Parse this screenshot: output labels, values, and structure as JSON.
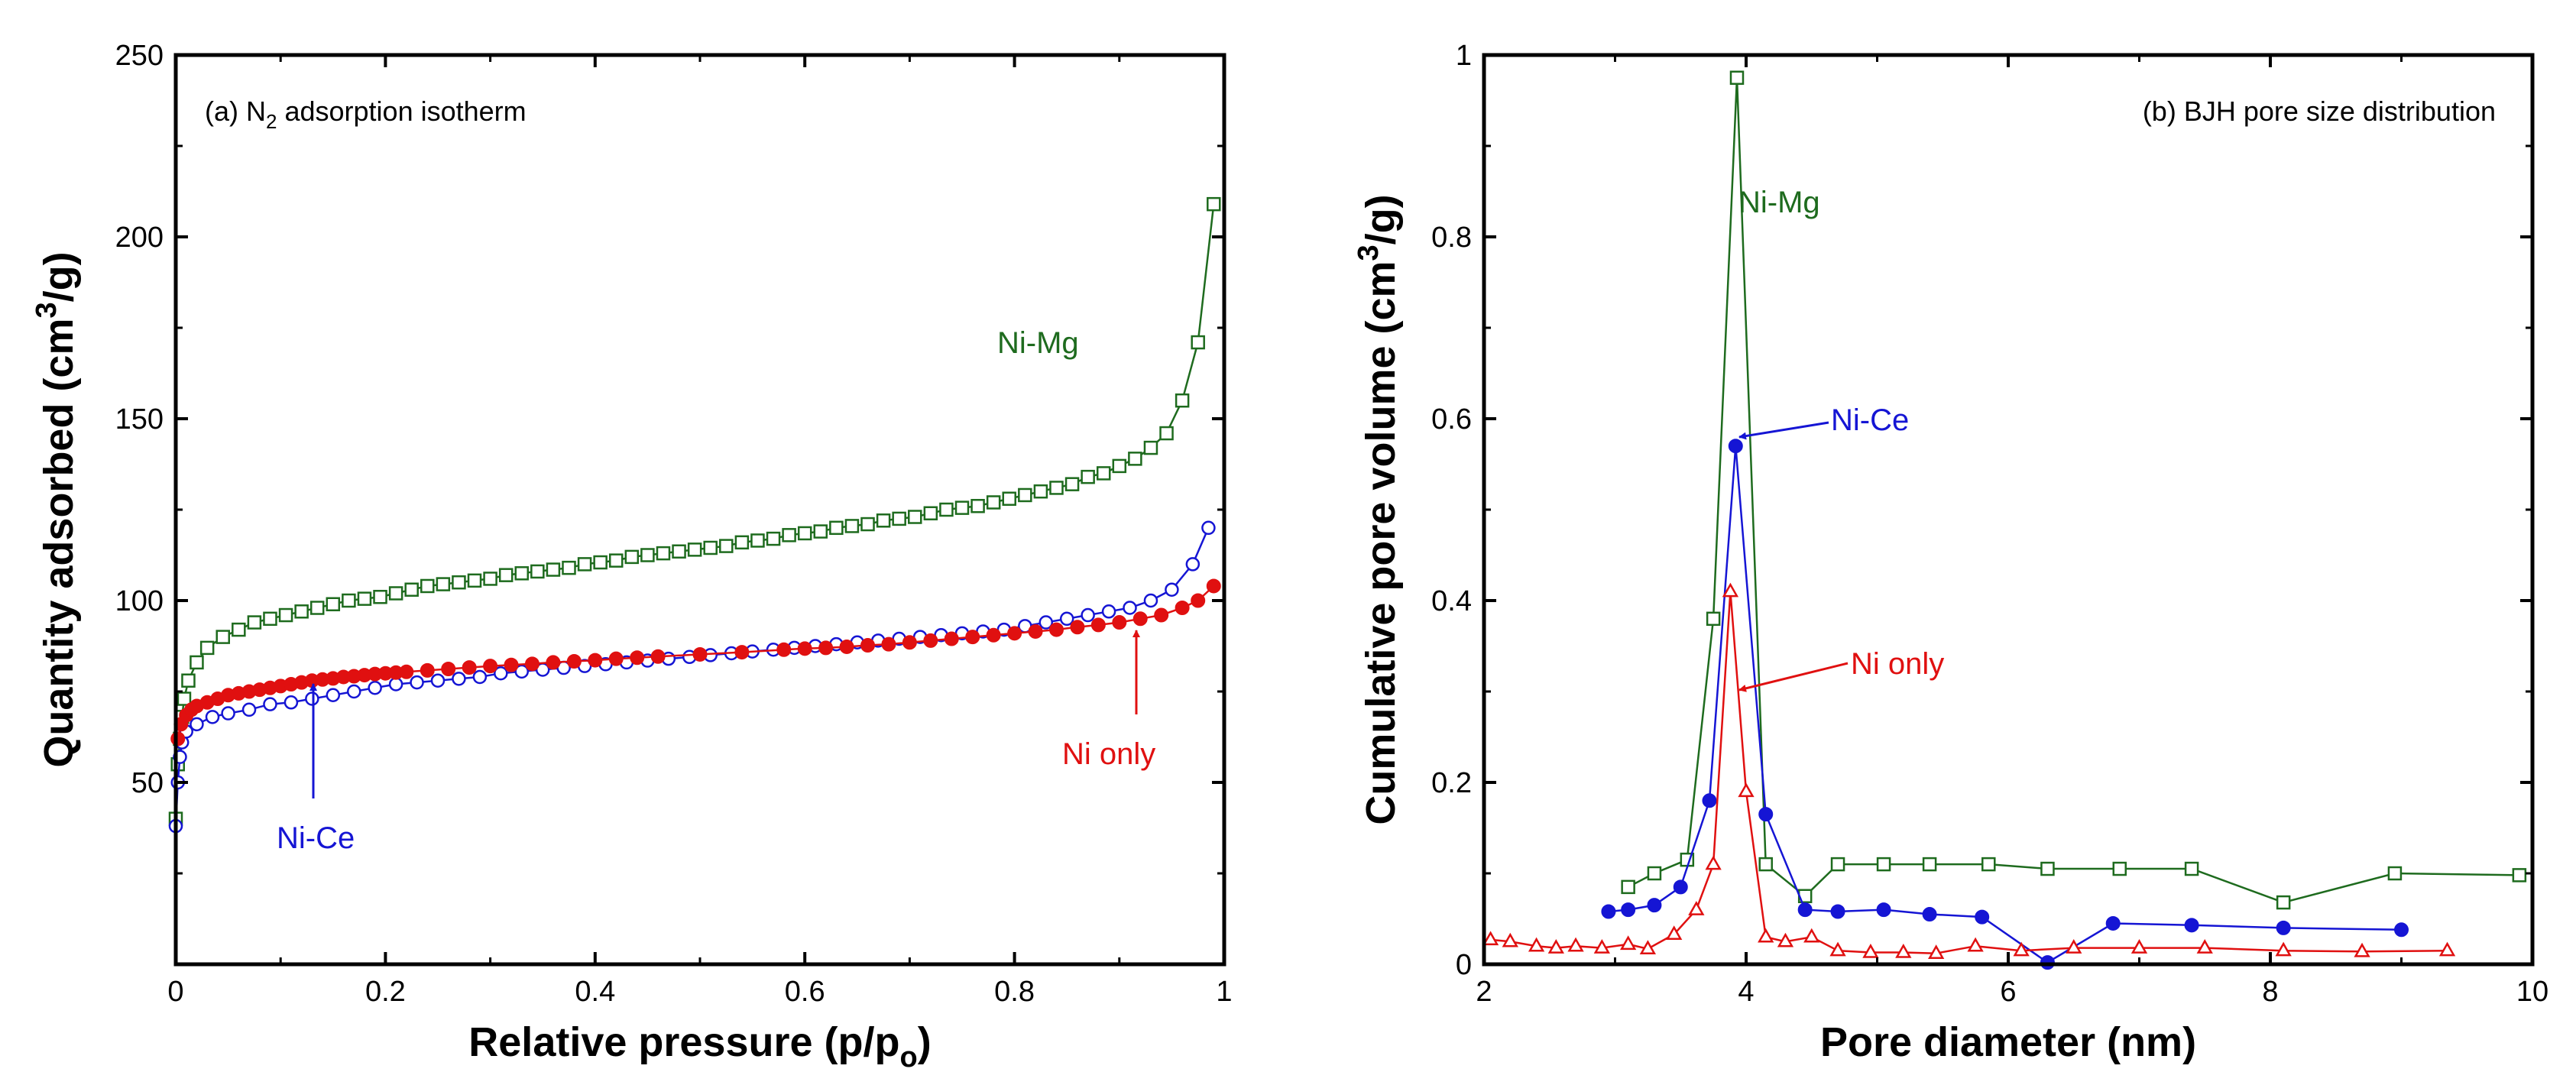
{
  "chart_data": [
    {
      "type": "line",
      "title": "(a) N",
      "title_sub": "2",
      "title_rest": " adsorption isotherm",
      "xlabel": "Relative pressure (p/p",
      "xlabel_sub": "o",
      "xlabel_end": ")",
      "ylabel": "Quantity adsorbed (cm",
      "ylabel_sup": "3",
      "ylabel_end": "/g)",
      "xlim": [
        0,
        1
      ],
      "ylim": [
        0,
        250
      ],
      "xticks": [
        "0",
        "0.2",
        "0.4",
        "0.6",
        "0.8",
        "1"
      ],
      "yticks": [
        "50",
        "100",
        "150",
        "200",
        "250"
      ],
      "series": [
        {
          "name": "Ni-Mg",
          "color": "#1e6b1e",
          "marker": "square-open",
          "x": [
            0.0,
            0.002,
            0.004,
            0.006,
            0.008,
            0.012,
            0.02,
            0.03,
            0.045,
            0.06,
            0.075,
            0.09,
            0.105,
            0.12,
            0.135,
            0.15,
            0.165,
            0.18,
            0.195,
            0.21,
            0.225,
            0.24,
            0.255,
            0.27,
            0.285,
            0.3,
            0.315,
            0.33,
            0.345,
            0.36,
            0.375,
            0.39,
            0.405,
            0.42,
            0.435,
            0.45,
            0.465,
            0.48,
            0.495,
            0.51,
            0.525,
            0.54,
            0.555,
            0.57,
            0.585,
            0.6,
            0.615,
            0.63,
            0.645,
            0.66,
            0.675,
            0.69,
            0.705,
            0.72,
            0.735,
            0.75,
            0.765,
            0.78,
            0.795,
            0.81,
            0.825,
            0.84,
            0.855,
            0.87,
            0.885,
            0.9,
            0.915,
            0.93,
            0.945,
            0.96,
            0.975,
            0.99
          ],
          "y": [
            40,
            55,
            62,
            68,
            73,
            78,
            83,
            87,
            90,
            92,
            94,
            95,
            96,
            97,
            98,
            99,
            100,
            100.5,
            101,
            102,
            103,
            104,
            104.5,
            105,
            105.5,
            106,
            107,
            107.5,
            108,
            108.5,
            109,
            110,
            110.5,
            111,
            112,
            112.5,
            113,
            113.5,
            114,
            114.5,
            115,
            116,
            116.5,
            117,
            118,
            118.5,
            119,
            120,
            120.5,
            121,
            122,
            122.5,
            123,
            124,
            125,
            125.5,
            126,
            127,
            128,
            129,
            130,
            131,
            132,
            134,
            135,
            137,
            139,
            142,
            146,
            155,
            171,
            209
          ]
        },
        {
          "name": "Ni-Ce",
          "color": "#1515d4",
          "marker": "circle-open",
          "x": [
            0.0,
            0.002,
            0.004,
            0.006,
            0.01,
            0.02,
            0.035,
            0.05,
            0.07,
            0.09,
            0.11,
            0.13,
            0.15,
            0.17,
            0.19,
            0.21,
            0.23,
            0.25,
            0.27,
            0.29,
            0.31,
            0.33,
            0.35,
            0.37,
            0.39,
            0.41,
            0.43,
            0.45,
            0.47,
            0.49,
            0.51,
            0.53,
            0.55,
            0.57,
            0.59,
            0.61,
            0.63,
            0.65,
            0.67,
            0.69,
            0.71,
            0.73,
            0.75,
            0.77,
            0.79,
            0.81,
            0.83,
            0.85,
            0.87,
            0.89,
            0.91,
            0.93,
            0.95,
            0.97,
            0.985
          ],
          "y": [
            38,
            50,
            57,
            61,
            64,
            66,
            68,
            69,
            70,
            71.5,
            72,
            73,
            74,
            75,
            76,
            77,
            77.5,
            78,
            78.5,
            79,
            80,
            80.5,
            81,
            81.5,
            82,
            82.5,
            83,
            83.5,
            84,
            84.5,
            85,
            85.5,
            86,
            86.5,
            87,
            87.5,
            88,
            88.5,
            89,
            89.5,
            90,
            90.5,
            91,
            91.5,
            92,
            93,
            94,
            95,
            96,
            97,
            98,
            100,
            103,
            110,
            120
          ]
        },
        {
          "name": "Ni only",
          "color": "#e01010",
          "marker": "circle-filled",
          "x": [
            0.002,
            0.005,
            0.01,
            0.015,
            0.02,
            0.03,
            0.04,
            0.05,
            0.06,
            0.07,
            0.08,
            0.09,
            0.1,
            0.11,
            0.12,
            0.13,
            0.14,
            0.15,
            0.16,
            0.17,
            0.18,
            0.19,
            0.2,
            0.21,
            0.22,
            0.24,
            0.26,
            0.28,
            0.3,
            0.32,
            0.34,
            0.36,
            0.38,
            0.4,
            0.42,
            0.44,
            0.46,
            0.5,
            0.54,
            0.58,
            0.6,
            0.62,
            0.64,
            0.66,
            0.68,
            0.7,
            0.72,
            0.74,
            0.76,
            0.78,
            0.8,
            0.82,
            0.84,
            0.86,
            0.88,
            0.9,
            0.92,
            0.94,
            0.96,
            0.975,
            0.99
          ],
          "y": [
            62,
            66,
            68.5,
            70,
            71,
            72,
            73,
            74,
            74.5,
            75,
            75.5,
            76,
            76.5,
            77,
            77.5,
            78,
            78.3,
            78.6,
            79,
            79.2,
            79.5,
            79.8,
            80,
            80.2,
            80.4,
            80.8,
            81.2,
            81.6,
            82,
            82.3,
            82.6,
            83,
            83.3,
            83.6,
            84,
            84.3,
            84.6,
            85.2,
            85.8,
            86.5,
            86.8,
            87,
            87.3,
            87.7,
            88,
            88.5,
            89,
            89.5,
            90,
            90.5,
            91,
            91.5,
            92,
            92.7,
            93.3,
            94,
            95,
            96,
            98,
            100,
            104
          ]
        }
      ],
      "annotations": [
        {
          "text": "Ni-Mg",
          "color": "#1e6b1e"
        },
        {
          "text": "Ni-Ce",
          "color": "#1515d4",
          "arrow_to": [
            0.13,
            73
          ]
        },
        {
          "text": "Ni only",
          "color": "#e01010",
          "arrow_to": [
            0.915,
            94
          ]
        }
      ]
    },
    {
      "type": "line",
      "title": "(b) BJH pore size distribution",
      "xlabel": "Pore diameter (nm)",
      "ylabel": "Cumulative pore volume (cm",
      "ylabel_sup": "3",
      "ylabel_end": "/g)",
      "xlim": [
        2,
        10
      ],
      "ylim": [
        0,
        1
      ],
      "xticks": [
        "2",
        "4",
        "6",
        "8",
        "10"
      ],
      "yticks": [
        "0",
        "0.2",
        "0.4",
        "0.6",
        "0.8",
        "1"
      ],
      "series": [
        {
          "name": "Ni-Mg",
          "color": "#1e6b1e",
          "marker": "square-open",
          "x": [
            3.1,
            3.3,
            3.55,
            3.75,
            3.93,
            4.15,
            4.45,
            4.7,
            5.05,
            5.4,
            5.85,
            6.3,
            6.85,
            7.4,
            8.1,
            8.95,
            9.9
          ],
          "y": [
            0.085,
            0.1,
            0.115,
            0.38,
            0.975,
            0.11,
            0.075,
            0.11,
            0.11,
            0.11,
            0.11,
            0.105,
            0.105,
            0.105,
            0.068,
            0.1,
            0.098
          ]
        },
        {
          "name": "Ni-Ce",
          "color": "#1515d4",
          "marker": "circle-filled",
          "x": [
            2.95,
            3.1,
            3.3,
            3.5,
            3.72,
            3.92,
            4.15,
            4.45,
            4.7,
            5.05,
            5.4,
            5.8,
            6.3,
            6.8,
            7.4,
            8.1,
            9.0
          ],
          "y": [
            0.058,
            0.06,
            0.065,
            0.085,
            0.18,
            0.57,
            0.165,
            0.06,
            0.058,
            0.06,
            0.055,
            0.052,
            0.002,
            0.045,
            0.043,
            0.04,
            0.038
          ]
        },
        {
          "name": "Ni only",
          "color": "#e01010",
          "marker": "triangle-open",
          "x": [
            2.05,
            2.2,
            2.4,
            2.55,
            2.7,
            2.9,
            3.1,
            3.25,
            3.45,
            3.62,
            3.75,
            3.88,
            4.0,
            4.15,
            4.3,
            4.5,
            4.7,
            4.95,
            5.2,
            5.45,
            5.75,
            6.1,
            6.5,
            7.0,
            7.5,
            8.1,
            8.7,
            9.35
          ],
          "y": [
            0.027,
            0.025,
            0.02,
            0.018,
            0.02,
            0.018,
            0.022,
            0.017,
            0.033,
            0.06,
            0.11,
            0.41,
            0.19,
            0.03,
            0.025,
            0.03,
            0.015,
            0.013,
            0.013,
            0.012,
            0.02,
            0.015,
            0.018,
            0.018,
            0.018,
            0.015,
            0.014,
            0.015
          ]
        }
      ],
      "annotations": [
        {
          "text": "Ni-Mg",
          "color": "#1e6b1e"
        },
        {
          "text": "Ni-Ce",
          "color": "#1515d4",
          "arrow_to": [
            3.95,
            0.57
          ]
        },
        {
          "text": "Ni only",
          "color": "#e01010",
          "arrow_to": [
            3.95,
            0.3
          ]
        }
      ]
    }
  ]
}
